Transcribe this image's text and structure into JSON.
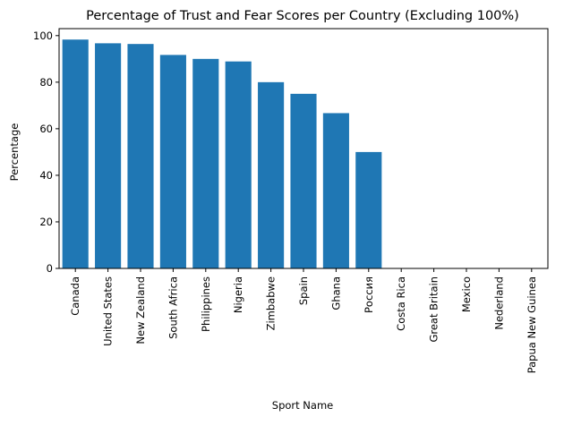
{
  "chart_data": {
    "type": "bar",
    "title": "Percentage of Trust and Fear Scores per Country (Excluding 100%)",
    "xlabel": "Sport Name",
    "ylabel": "Percentage",
    "categories": [
      "Canada",
      "United States",
      "New Zealand",
      "South Africa",
      "Philippines",
      "Nigeria",
      "Zimbabwe",
      "Spain",
      "Ghana",
      "Россия",
      "Costa Rica",
      "Great Britain",
      "Mexico",
      "Nederland",
      "Papua New Guinea"
    ],
    "values": [
      98.3,
      96.7,
      96.4,
      91.7,
      90.0,
      88.9,
      80.0,
      75.0,
      66.7,
      50.0,
      0,
      0,
      0,
      0,
      0
    ],
    "ylim": [
      0,
      103
    ],
    "yticks": [
      0,
      20,
      40,
      60,
      80,
      100
    ],
    "grid": false,
    "bar_color": "#1f77b4"
  }
}
